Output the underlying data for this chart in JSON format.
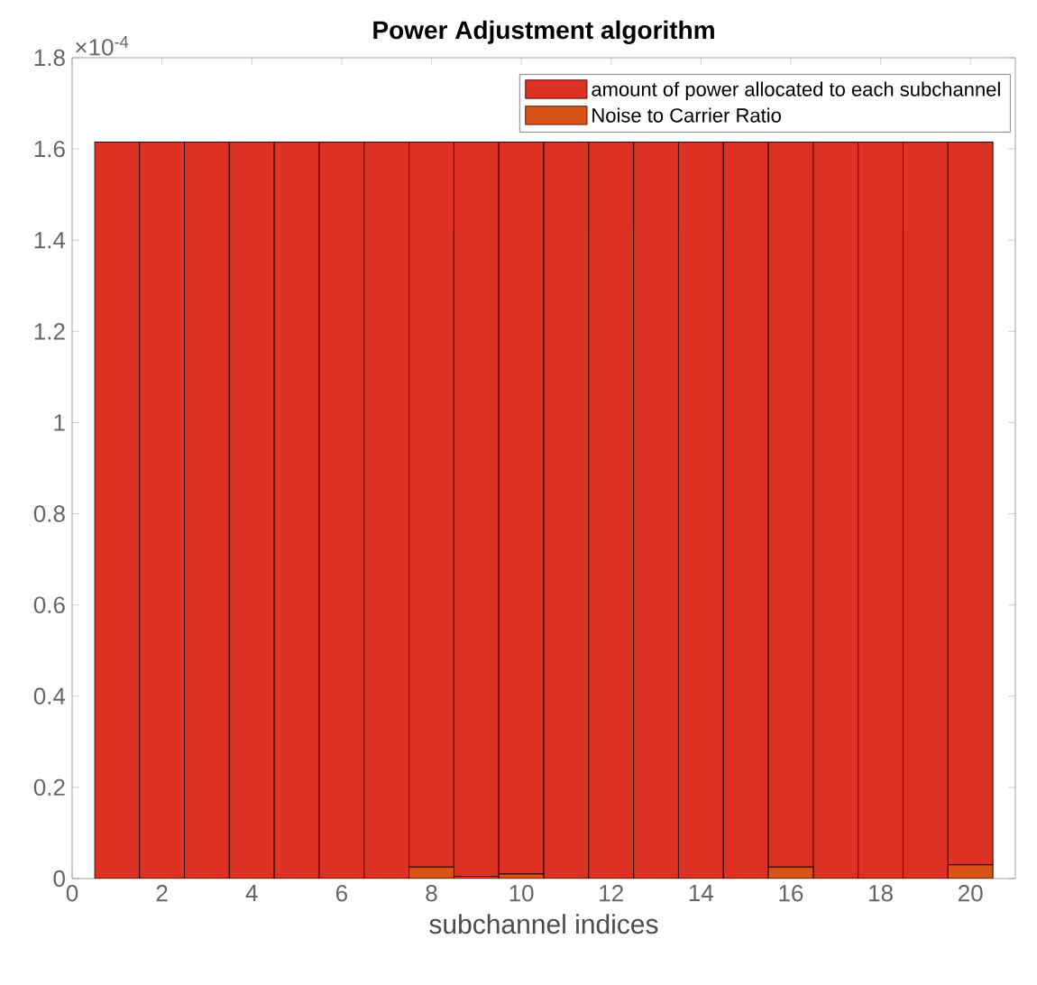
{
  "chart_data": {
    "type": "bar",
    "title": "Power Adjustment algorithm",
    "xlabel": "subchannel indices",
    "stacked": true,
    "x": [
      1,
      2,
      3,
      4,
      5,
      6,
      7,
      8,
      9,
      10,
      11,
      12,
      13,
      14,
      15,
      16,
      17,
      18,
      19,
      20
    ],
    "series": [
      {
        "name": "Noise to Carrier Ratio",
        "color": "#d95319",
        "values": [
          0,
          0,
          0,
          0,
          0,
          0,
          0,
          0.025,
          0.005,
          0.01,
          0,
          0,
          0,
          0,
          0,
          0.025,
          0,
          0,
          0,
          0.03
        ]
      },
      {
        "name": "amount of power allocated to each subchannel",
        "color": "#dd3124",
        "values": [
          1.615,
          1.615,
          1.615,
          1.615,
          1.615,
          1.615,
          1.615,
          1.59,
          1.61,
          1.605,
          1.615,
          1.615,
          1.615,
          1.615,
          1.615,
          1.59,
          1.615,
          1.615,
          1.615,
          1.585
        ]
      }
    ],
    "xlim": [
      0,
      21
    ],
    "xticks": [
      0,
      2,
      4,
      6,
      8,
      10,
      12,
      14,
      16,
      18,
      20
    ],
    "ylim": [
      0,
      1.8
    ],
    "yticks": [
      0,
      0.2,
      0.4,
      0.6,
      0.8,
      1,
      1.2,
      1.4,
      1.6,
      1.8
    ],
    "annotations": [
      "×10$^{-4}$"
    ],
    "legend": "top right",
    "grid": false
  }
}
